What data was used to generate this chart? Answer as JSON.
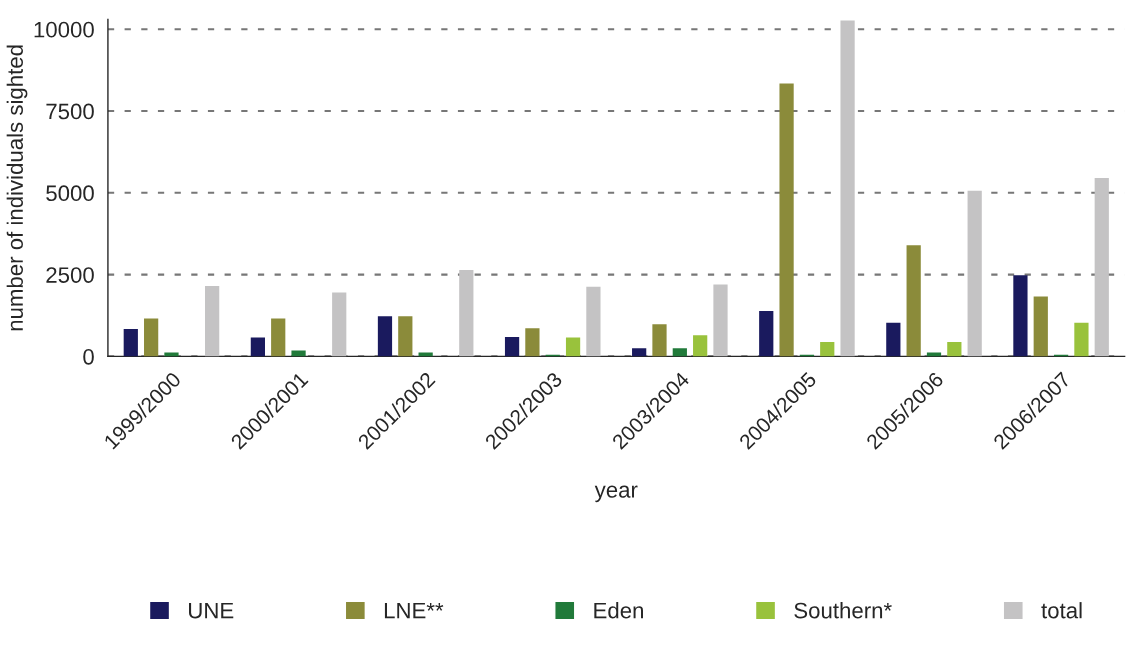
{
  "chart_data": {
    "type": "bar",
    "xlabel": "year",
    "ylabel": "number of individuals sighted",
    "categories": [
      "1999/2000",
      "2000/2001",
      "2001/2002",
      "2002/2003",
      "2003/2004",
      "2004/2005",
      "2005/2006",
      "2006/2007"
    ],
    "series": [
      {
        "name": "UNE",
        "color": "#1a1a5e",
        "values": [
          840,
          580,
          1230,
          590,
          250,
          1390,
          1030,
          2480
        ]
      },
      {
        "name": "LNE**",
        "color": "#8b8b3a",
        "values": [
          1160,
          1160,
          1230,
          860,
          980,
          8340,
          3400,
          1830
        ]
      },
      {
        "name": "Eden",
        "color": "#217a3a",
        "values": [
          120,
          180,
          120,
          50,
          250,
          50,
          120,
          50
        ]
      },
      {
        "name": "Southern*",
        "color": "#99c23c",
        "values": [
          null,
          null,
          null,
          580,
          650,
          440,
          440,
          1030
        ]
      },
      {
        "name": "total",
        "color": "#c4c3c4",
        "values": [
          2150,
          1950,
          2640,
          2130,
          2200,
          10270,
          5060,
          5450
        ]
      }
    ],
    "ylim": [
      0,
      10300
    ],
    "yticks": [
      0,
      2500,
      5000,
      7500,
      10000
    ],
    "grid": "y",
    "legend": "bottom"
  }
}
